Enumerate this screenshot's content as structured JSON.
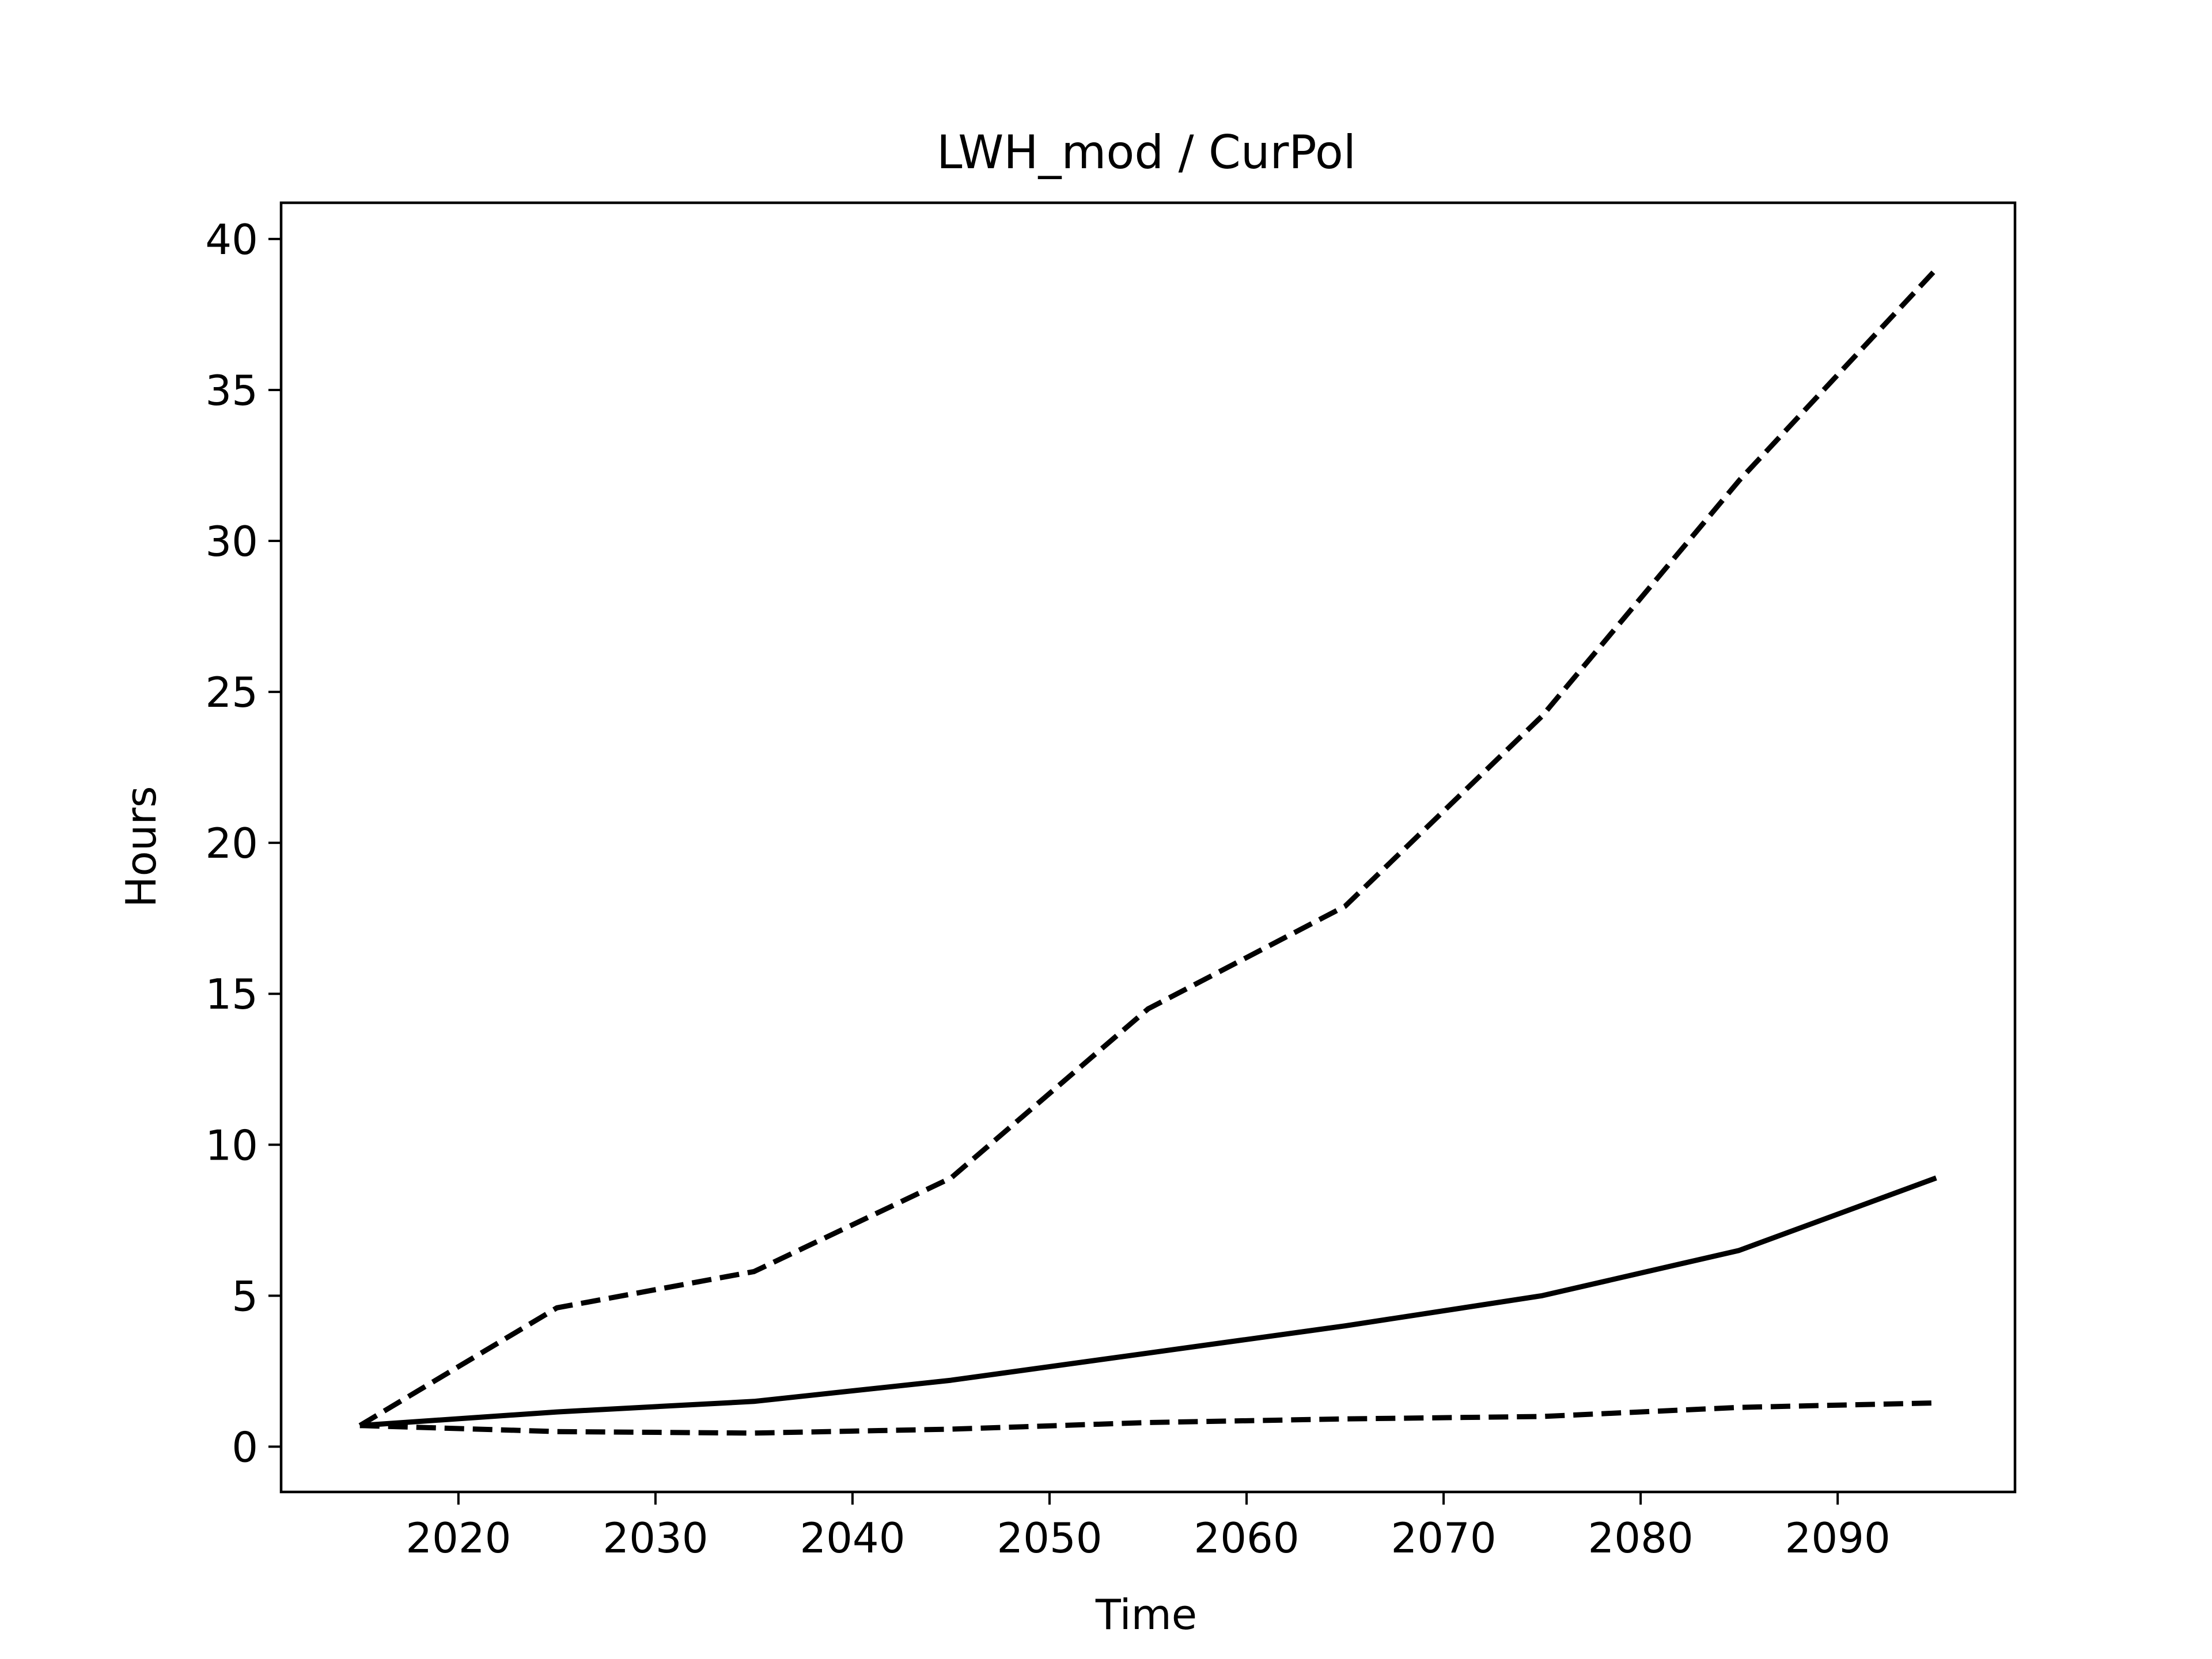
{
  "chart_data": {
    "type": "line",
    "title": "LWH_mod / CurPol",
    "xlabel": "Time",
    "ylabel": "Hours",
    "xlim": [
      2011,
      2099
    ],
    "ylim": [
      -1.5,
      41.2
    ],
    "x_ticks": [
      2020,
      2030,
      2040,
      2050,
      2060,
      2070,
      2080,
      2090
    ],
    "y_ticks": [
      0,
      5,
      10,
      15,
      20,
      25,
      30,
      35,
      40
    ],
    "x_tick_labels": [
      "2020",
      "2030",
      "2040",
      "2050",
      "2060",
      "2070",
      "2080",
      "2090"
    ],
    "y_tick_labels": [
      "0",
      "5",
      "10",
      "15",
      "20",
      "25",
      "30",
      "35",
      "40"
    ],
    "grid": false,
    "legend": null,
    "x": [
      2015,
      2025,
      2035,
      2045,
      2055,
      2065,
      2075,
      2085,
      2095
    ],
    "series": [
      {
        "style": "dashed",
        "color": "#000000",
        "values": [
          0.7,
          4.6,
          5.8,
          8.9,
          14.5,
          17.9,
          24.2,
          32.0,
          39.0
        ]
      },
      {
        "style": "solid",
        "color": "#000000",
        "values": [
          0.7,
          1.15,
          1.5,
          2.2,
          3.1,
          4.0,
          5.0,
          6.5,
          8.9
        ]
      },
      {
        "style": "dashed",
        "color": "#000000",
        "values": [
          0.7,
          0.5,
          0.45,
          0.58,
          0.8,
          0.92,
          1.0,
          1.3,
          1.45
        ]
      }
    ]
  }
}
